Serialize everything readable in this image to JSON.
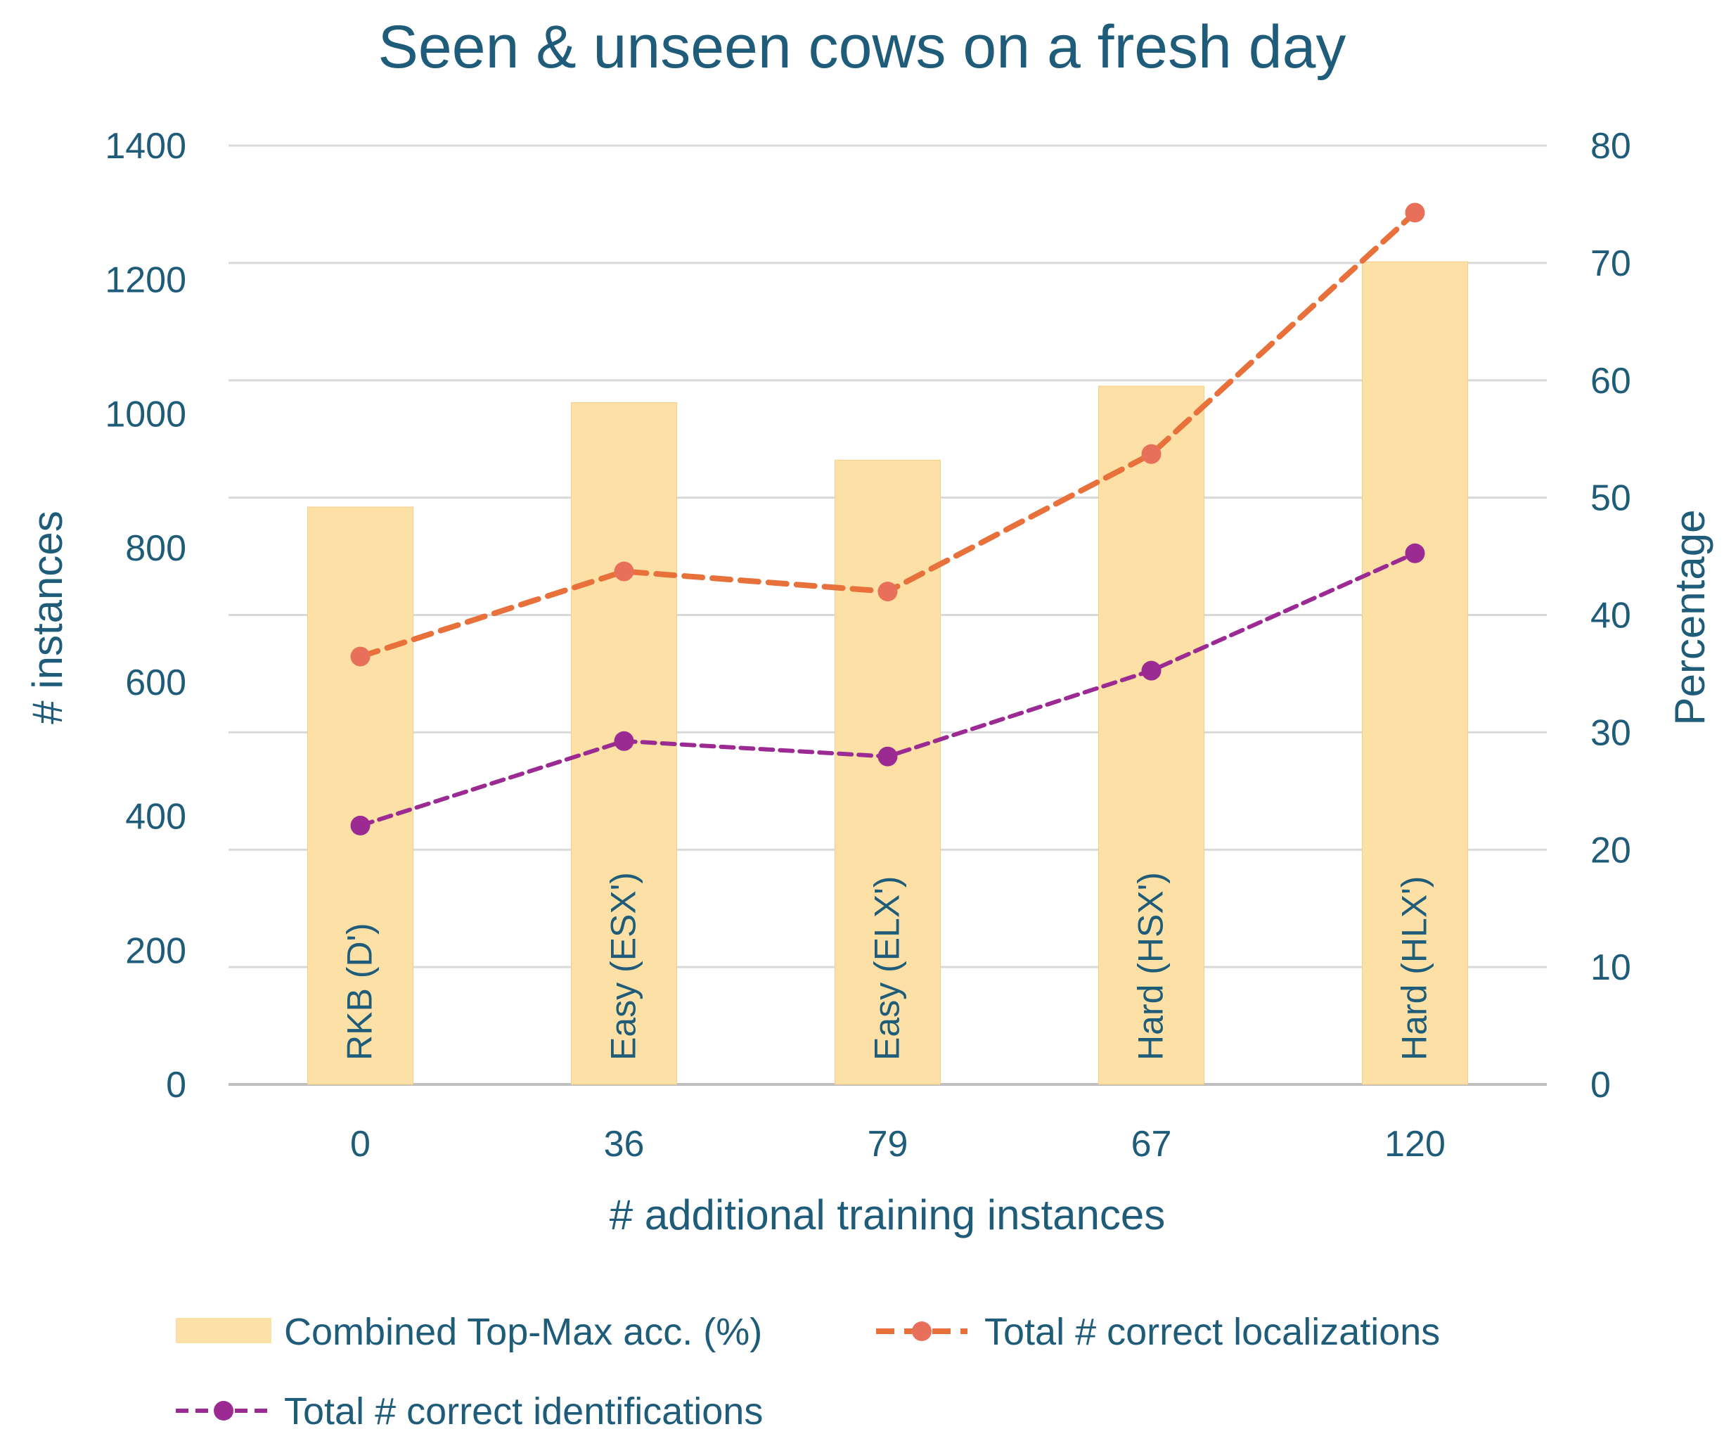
{
  "chart_data": {
    "type": "bar",
    "title": "Seen & unseen cows on a fresh day",
    "xlabel": "# additional training instances",
    "ylabel": "# instances",
    "ylabel_right": "Percentage",
    "ylim": [
      0,
      1400
    ],
    "y_ticks": [
      "0",
      "200",
      "400",
      "600",
      "800",
      "1000",
      "1200",
      "1400"
    ],
    "ylim_right": [
      0,
      80
    ],
    "y_ticks_right": [
      "0",
      "10",
      "20",
      "30",
      "40",
      "50",
      "60",
      "70",
      "80"
    ],
    "grid": true,
    "legend_position": "bottom",
    "categories": [
      "0",
      "36",
      "79",
      "67",
      "120"
    ],
    "bar_labels": [
      "RKB (D')",
      "Easy (ESX')",
      "Easy (ELX')",
      "Hard (HSX')",
      "Hard (HLX')"
    ],
    "series": [
      {
        "name": "Combined Top-Max acc. (%)",
        "type": "bar",
        "axis": "right",
        "color": "#fde0a6",
        "values": [
          49.2,
          58.1,
          53.2,
          59.5,
          70.1
        ]
      },
      {
        "name": "Total # correct localizations",
        "type": "line",
        "axis": "left",
        "style": "dashed",
        "color": "#e8703a",
        "marker_color": "#e8705a",
        "values": [
          638,
          765,
          735,
          940,
          1300
        ]
      },
      {
        "name": "Total # correct identifications",
        "type": "line",
        "axis": "left",
        "style": "dashed",
        "color": "#9b2b93",
        "marker_color": "#9b2b93",
        "values": [
          386,
          512,
          489,
          617,
          792
        ]
      }
    ]
  }
}
